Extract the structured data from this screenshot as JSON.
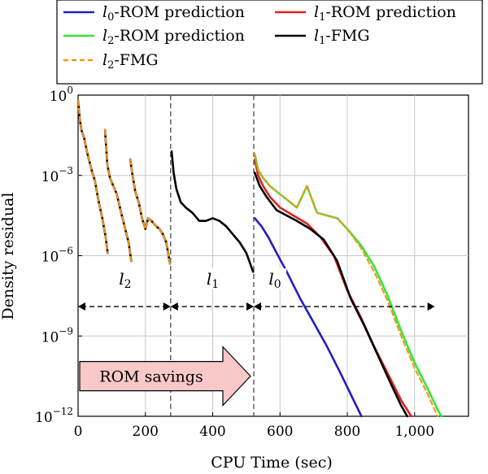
{
  "chart_data": {
    "type": "line",
    "xlabel": "CPU Time (sec)",
    "ylabel": "Density residual",
    "xlim": [
      0,
      1160
    ],
    "ylim_log10": [
      -12,
      0
    ],
    "y_scale": "log",
    "x_ticks": [
      0,
      200,
      400,
      600,
      800,
      1000
    ],
    "x_tick_labels": [
      "0",
      "200",
      "400",
      "600",
      "800",
      "1,000"
    ],
    "y_ticks": [
      {
        "exp": 0,
        "base": "10",
        "sup": "0"
      },
      {
        "exp": -3,
        "base": "10",
        "sup": "−3"
      },
      {
        "exp": -6,
        "base": "10",
        "sup": "−6"
      },
      {
        "exp": -9,
        "base": "10",
        "sup": "−9"
      },
      {
        "exp": -12,
        "base": "10",
        "sup": "−12"
      }
    ],
    "grid": true,
    "legend_position": "top-left, above plot",
    "legend": [
      {
        "key": "l0_rom",
        "italic": "l",
        "sub": "0",
        "rest": "-ROM prediction",
        "color": "#1f1fbf",
        "dash": false
      },
      {
        "key": "l1_rom",
        "italic": "l",
        "sub": "1",
        "rest": "-ROM prediction",
        "color": "#e02020",
        "dash": false
      },
      {
        "key": "l2_rom",
        "italic": "l",
        "sub": "2",
        "rest": "-ROM prediction",
        "color": "#33e633",
        "dash": false
      },
      {
        "key": "l1_fmg",
        "italic": "l",
        "sub": "1",
        "rest": "-FMG",
        "color": "#000000",
        "dash": false
      },
      {
        "key": "l2_fmg",
        "italic": "l",
        "sub": "2",
        "rest": "-FMG",
        "color": "#f0961e",
        "dash": true
      }
    ],
    "series": [
      {
        "key": "l2_fmg_seg1",
        "color": "#000000",
        "width": 2.6,
        "points": [
          [
            0,
            -0.2
          ],
          [
            5,
            -0.9
          ],
          [
            10,
            -1.3
          ],
          [
            18,
            -1.6
          ],
          [
            28,
            -2.2
          ],
          [
            40,
            -2.8
          ],
          [
            50,
            -3.2
          ],
          [
            60,
            -3.9
          ],
          [
            72,
            -4.6
          ],
          [
            82,
            -5.3
          ],
          [
            88,
            -5.9
          ]
        ]
      },
      {
        "key": "l2_fmg_seg2",
        "color": "#000000",
        "width": 2.6,
        "points": [
          [
            80,
            -1.3
          ],
          [
            87,
            -2.6
          ],
          [
            95,
            -3.1
          ],
          [
            105,
            -3.4
          ],
          [
            115,
            -3.7
          ],
          [
            128,
            -4.4
          ],
          [
            138,
            -4.9
          ],
          [
            150,
            -5.5
          ],
          [
            158,
            -6.2
          ]
        ]
      },
      {
        "key": "l2_fmg_seg3",
        "color": "#000000",
        "width": 2.6,
        "points": [
          [
            155,
            -2.4
          ],
          [
            162,
            -3.0
          ],
          [
            170,
            -3.6
          ],
          [
            180,
            -4.0
          ],
          [
            190,
            -4.6
          ],
          [
            200,
            -5.0
          ],
          [
            208,
            -4.6
          ],
          [
            218,
            -4.7
          ],
          [
            232,
            -4.9
          ],
          [
            242,
            -5.0
          ],
          [
            252,
            -5.2
          ],
          [
            262,
            -5.5
          ],
          [
            273,
            -6.3
          ]
        ]
      },
      {
        "key": "l2_fmg_dash1",
        "color": "#f0961e",
        "width": 2.2,
        "dash": "6,4",
        "points": [
          [
            0,
            -0.2
          ],
          [
            5,
            -0.9
          ],
          [
            10,
            -1.3
          ],
          [
            18,
            -1.6
          ],
          [
            28,
            -2.2
          ],
          [
            40,
            -2.8
          ],
          [
            50,
            -3.2
          ],
          [
            60,
            -3.9
          ],
          [
            72,
            -4.6
          ],
          [
            82,
            -5.3
          ],
          [
            88,
            -5.9
          ]
        ]
      },
      {
        "key": "l2_fmg_dash2",
        "color": "#f0961e",
        "width": 2.2,
        "dash": "6,4",
        "points": [
          [
            80,
            -1.3
          ],
          [
            87,
            -2.6
          ],
          [
            95,
            -3.1
          ],
          [
            105,
            -3.4
          ],
          [
            115,
            -3.7
          ],
          [
            128,
            -4.4
          ],
          [
            138,
            -4.9
          ],
          [
            150,
            -5.5
          ],
          [
            158,
            -6.2
          ]
        ]
      },
      {
        "key": "l2_fmg_dash3",
        "color": "#f0961e",
        "width": 2.2,
        "dash": "6,4",
        "points": [
          [
            155,
            -2.4
          ],
          [
            162,
            -3.0
          ],
          [
            170,
            -3.6
          ],
          [
            180,
            -4.0
          ],
          [
            190,
            -4.6
          ],
          [
            200,
            -5.0
          ],
          [
            208,
            -4.6
          ],
          [
            218,
            -4.7
          ],
          [
            232,
            -4.9
          ],
          [
            242,
            -5.0
          ],
          [
            252,
            -5.2
          ],
          [
            262,
            -5.5
          ],
          [
            273,
            -6.3
          ]
        ]
      },
      {
        "key": "l1_fmg_coarse",
        "color": "#000000",
        "width": 2.6,
        "points": [
          [
            278,
            -2.1
          ],
          [
            284,
            -2.9
          ],
          [
            292,
            -3.5
          ],
          [
            305,
            -4.0
          ],
          [
            320,
            -4.2
          ],
          [
            340,
            -4.4
          ],
          [
            360,
            -4.7
          ],
          [
            380,
            -4.7
          ],
          [
            400,
            -4.6
          ],
          [
            420,
            -4.7
          ],
          [
            440,
            -4.9
          ],
          [
            460,
            -5.2
          ],
          [
            480,
            -5.5
          ],
          [
            500,
            -5.9
          ],
          [
            520,
            -6.6
          ]
        ]
      },
      {
        "key": "l0_rom",
        "color": "#1f1fbf",
        "width": 2.6,
        "points": [
          [
            525,
            -4.6
          ],
          [
            545,
            -4.9
          ],
          [
            565,
            -5.3
          ],
          [
            590,
            -5.9
          ],
          [
            620,
            -6.6
          ],
          [
            660,
            -7.6
          ],
          [
            700,
            -8.5
          ],
          [
            740,
            -9.4
          ],
          [
            780,
            -10.4
          ],
          [
            815,
            -11.3
          ],
          [
            842,
            -12.0
          ]
        ]
      },
      {
        "key": "l1_rom",
        "color": "#e02020",
        "width": 2.6,
        "points": [
          [
            525,
            -2.4
          ],
          [
            535,
            -3.0
          ],
          [
            550,
            -3.4
          ],
          [
            570,
            -3.8
          ],
          [
            600,
            -4.2
          ],
          [
            640,
            -4.5
          ],
          [
            680,
            -4.8
          ],
          [
            720,
            -5.3
          ],
          [
            760,
            -6.0
          ],
          [
            800,
            -7.3
          ],
          [
            840,
            -8.3
          ],
          [
            880,
            -9.4
          ],
          [
            920,
            -10.4
          ],
          [
            960,
            -11.4
          ],
          [
            990,
            -12.0
          ]
        ]
      },
      {
        "key": "l1_fmg",
        "color": "#000000",
        "width": 2.6,
        "points": [
          [
            525,
            -2.9
          ],
          [
            540,
            -3.4
          ],
          [
            560,
            -3.8
          ],
          [
            590,
            -4.3
          ],
          [
            620,
            -4.5
          ],
          [
            650,
            -4.7
          ],
          [
            690,
            -5.0
          ],
          [
            730,
            -5.4
          ],
          [
            770,
            -6.2
          ],
          [
            810,
            -7.6
          ],
          [
            850,
            -8.6
          ],
          [
            890,
            -9.7
          ],
          [
            930,
            -10.8
          ],
          [
            960,
            -11.6
          ],
          [
            978,
            -12.0
          ]
        ]
      },
      {
        "key": "l2_rom",
        "color": "#33e633",
        "width": 2.6,
        "points": [
          [
            525,
            -2.2
          ],
          [
            535,
            -2.8
          ],
          [
            550,
            -3.1
          ],
          [
            570,
            -3.4
          ],
          [
            590,
            -3.6
          ],
          [
            620,
            -3.9
          ],
          [
            650,
            -4.2
          ],
          [
            680,
            -3.4
          ],
          [
            710,
            -4.4
          ],
          [
            740,
            -4.5
          ],
          [
            770,
            -4.6
          ],
          [
            800,
            -5.0
          ],
          [
            840,
            -5.6
          ],
          [
            880,
            -6.4
          ],
          [
            920,
            -7.5
          ],
          [
            960,
            -8.8
          ],
          [
            1000,
            -10.0
          ],
          [
            1040,
            -11.0
          ],
          [
            1070,
            -11.8
          ],
          [
            1080,
            -12.0
          ]
        ]
      },
      {
        "key": "l2_fmg_fine",
        "color": "#f0961e",
        "width": 2.0,
        "dash": "6,4",
        "points": [
          [
            525,
            -2.2
          ],
          [
            535,
            -2.8
          ],
          [
            550,
            -3.1
          ],
          [
            570,
            -3.4
          ],
          [
            590,
            -3.6
          ],
          [
            620,
            -3.9
          ],
          [
            650,
            -4.2
          ],
          [
            680,
            -3.4
          ],
          [
            710,
            -4.4
          ],
          [
            740,
            -4.5
          ],
          [
            770,
            -4.6
          ],
          [
            800,
            -5.0
          ],
          [
            840,
            -5.7
          ],
          [
            880,
            -6.6
          ],
          [
            920,
            -7.7
          ],
          [
            960,
            -9.0
          ],
          [
            1000,
            -10.2
          ],
          [
            1040,
            -11.2
          ],
          [
            1068,
            -12.0
          ]
        ]
      }
    ],
    "phase_dividers_x": [
      275,
      522
    ],
    "phase_ranges": [
      {
        "label_italic": "l",
        "label_sub": "2",
        "from": 0,
        "to": 275,
        "label_x": 140
      },
      {
        "label_italic": "l",
        "label_sub": "1",
        "from": 275,
        "to": 522,
        "label_x": 400
      },
      {
        "label_italic": "l",
        "label_sub": "0",
        "from": 522,
        "to": 1060,
        "label_x": 585
      }
    ],
    "phase_arrow_y_exp": -7.9,
    "phase_label_y_exp": -6.9,
    "annotation": {
      "text": "ROM savings",
      "from": 0,
      "to": 522,
      "y_exp": -10.5,
      "fill": "#f9c8c8"
    }
  }
}
